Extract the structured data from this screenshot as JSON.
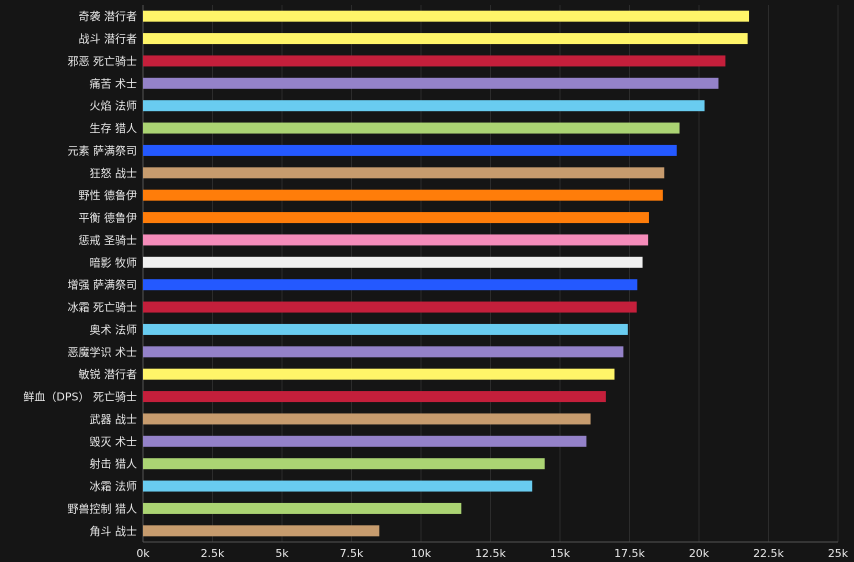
{
  "chart_data": {
    "type": "bar",
    "orientation": "horizontal",
    "title": "",
    "xlabel": "",
    "ylabel": "",
    "xlim": [
      0,
      25000
    ],
    "grid": true,
    "legend": "none",
    "tick_values": [
      0,
      2500,
      5000,
      7500,
      10000,
      12500,
      15000,
      17500,
      20000,
      22500,
      25000
    ],
    "tick_labels": [
      "0k",
      "2.5k",
      "5k",
      "7.5k",
      "10k",
      "12.5k",
      "15k",
      "17.5k",
      "20k",
      "22.5k",
      "25k"
    ],
    "categories": [
      "奇袭 潜行者",
      "战斗 潜行者",
      "邪恶 死亡骑士",
      "痛苦 术士",
      "火焰 法师",
      "生存 猎人",
      "元素 萨满祭司",
      "狂怒 战士",
      "野性 德鲁伊",
      "平衡 德鲁伊",
      "惩戒 圣骑士",
      "暗影 牧师",
      "增强 萨满祭司",
      "冰霜 死亡骑士",
      "奥术 法师",
      "恶魔学识 术士",
      "敏锐 潜行者",
      "鲜血（DPS） 死亡骑士",
      "武器 战士",
      "毁灭 术士",
      "射击 猎人",
      "冰霜 法师",
      "野兽控制 猎人",
      "角斗 战士"
    ],
    "values": [
      21800,
      21750,
      20950,
      20700,
      20200,
      19300,
      19200,
      18750,
      18700,
      18200,
      18170,
      17970,
      17780,
      17760,
      17440,
      17280,
      16960,
      16650,
      16100,
      15950,
      14450,
      14000,
      11450,
      8500
    ],
    "colors": [
      "#FFF569",
      "#FFF569",
      "#C41F3B",
      "#9482C9",
      "#69CCF0",
      "#ABD473",
      "#2459FF",
      "#C79C6E",
      "#FF7D0A",
      "#FF7D0A",
      "#F58CBA",
      "#F0F0F0",
      "#2459FF",
      "#C41F3B",
      "#69CCF0",
      "#9482C9",
      "#FFF569",
      "#C41F3B",
      "#C79C6E",
      "#9482C9",
      "#ABD473",
      "#69CCF0",
      "#ABD473",
      "#C79C6E"
    ]
  }
}
